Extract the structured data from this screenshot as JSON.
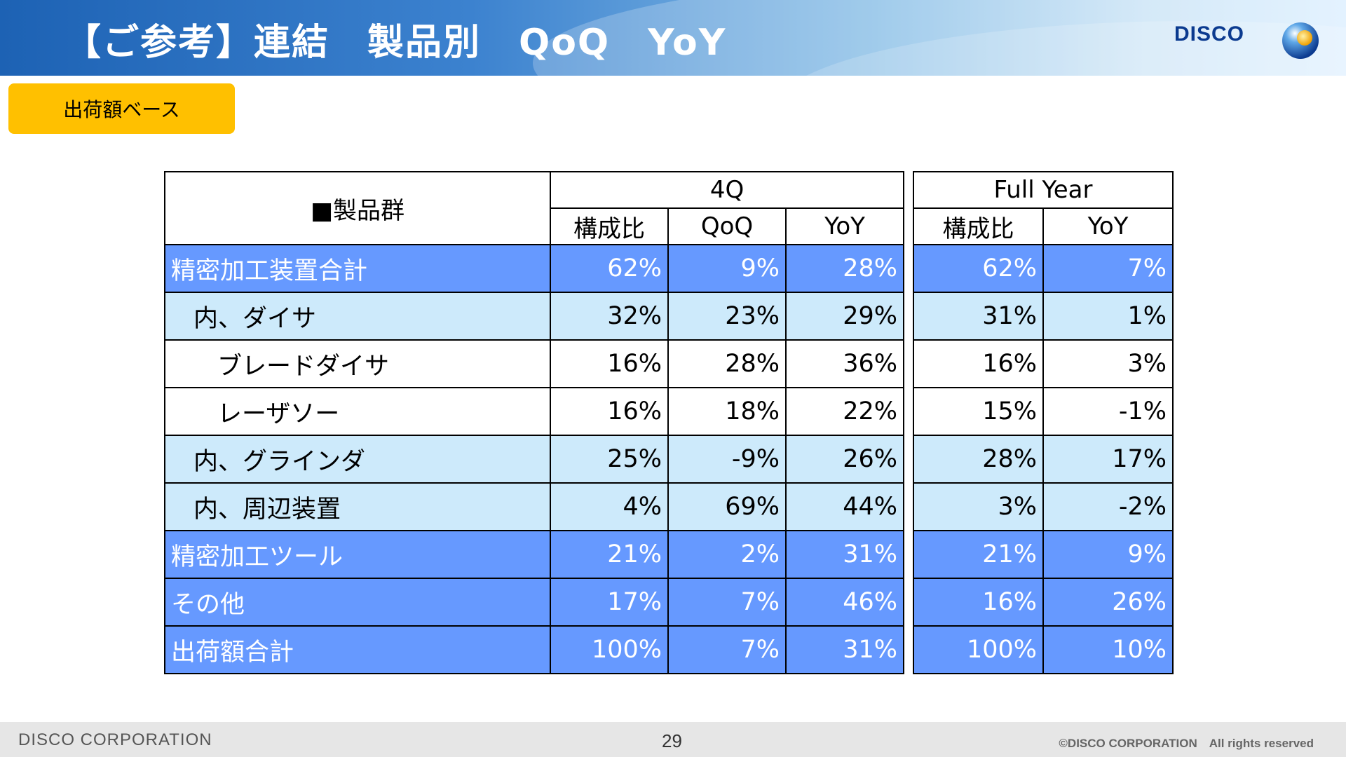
{
  "header": {
    "title": "【ご参考】連結　製品別　QoQ　YoY",
    "logo_text": "DISCO",
    "colors": {
      "band_start": "#1d62b4",
      "band_end": "#dcefff",
      "logo_text": "#0b3a8f"
    }
  },
  "badge": {
    "label": "出荷額ベース",
    "color": "#ffc000"
  },
  "table_4q": {
    "product_header": "■製品群",
    "group_header": "4Q",
    "columns": [
      "構成比",
      "QoQ",
      "YoY"
    ],
    "rows": [
      {
        "label": "精密加工装置合計",
        "level": 0,
        "style": "dark",
        "values": [
          "62%",
          "9%",
          "28%"
        ]
      },
      {
        "label": "内、ダイサ",
        "level": 1,
        "style": "light",
        "values": [
          "32%",
          "23%",
          "29%"
        ]
      },
      {
        "label": "ブレードダイサ",
        "level": 2,
        "style": "white",
        "values": [
          "16%",
          "28%",
          "36%"
        ]
      },
      {
        "label": "レーザソー",
        "level": 2,
        "style": "white",
        "values": [
          "16%",
          "18%",
          "22%"
        ]
      },
      {
        "label": "内、グラインダ",
        "level": 1,
        "style": "light",
        "values": [
          "25%",
          "-9%",
          "26%"
        ]
      },
      {
        "label": "内、周辺装置",
        "level": 1,
        "style": "light",
        "values": [
          "4%",
          "69%",
          "44%"
        ]
      },
      {
        "label": "精密加工ツール",
        "level": 0,
        "style": "dark",
        "values": [
          "21%",
          "2%",
          "31%"
        ]
      },
      {
        "label": "その他",
        "level": 0,
        "style": "dark",
        "values": [
          "17%",
          "7%",
          "46%"
        ]
      },
      {
        "label": "出荷額合計",
        "level": 0,
        "style": "dark",
        "values": [
          "100%",
          "7%",
          "31%"
        ]
      }
    ]
  },
  "table_fy": {
    "group_header": "Full Year",
    "columns": [
      "構成比",
      "YoY"
    ],
    "rows": [
      {
        "style": "dark",
        "values": [
          "62%",
          "7%"
        ]
      },
      {
        "style": "light",
        "values": [
          "31%",
          "1%"
        ]
      },
      {
        "style": "white",
        "values": [
          "16%",
          "3%"
        ]
      },
      {
        "style": "white",
        "values": [
          "15%",
          "-1%"
        ]
      },
      {
        "style": "light",
        "values": [
          "28%",
          "17%"
        ]
      },
      {
        "style": "light",
        "values": [
          "3%",
          "-2%"
        ]
      },
      {
        "style": "dark",
        "values": [
          "21%",
          "9%"
        ]
      },
      {
        "style": "dark",
        "values": [
          "16%",
          "26%"
        ]
      },
      {
        "style": "dark",
        "values": [
          "100%",
          "10%"
        ]
      }
    ]
  },
  "row_colors": {
    "dark": "#6699ff",
    "light": "#cdeafb",
    "white": "#ffffff"
  },
  "footer": {
    "company": "DISCO CORPORATION",
    "page_number": "29",
    "copyright": "©DISCO CORPORATION　All rights reserved"
  }
}
